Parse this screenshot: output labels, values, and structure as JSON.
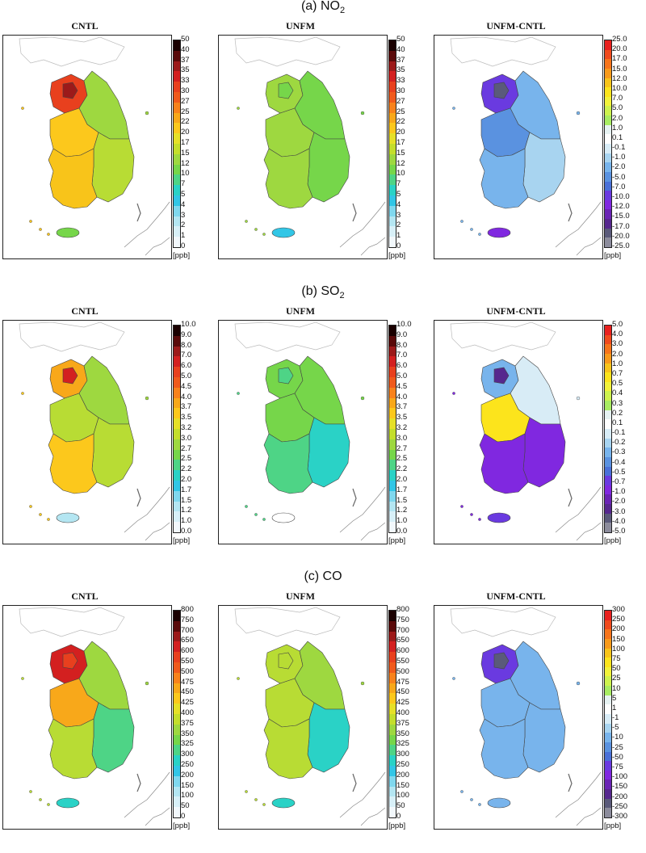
{
  "sections": [
    {
      "title_main": "(a) NO",
      "title_sub": "2",
      "scale": "a",
      "panels": [
        "CNTL",
        "UNFM",
        "UNFM-CNTL"
      ]
    },
    {
      "title_main": "(b) SO",
      "title_sub": "2",
      "scale": "b",
      "panels": [
        "CNTL",
        "UNFM",
        "UNFM-CNTL"
      ]
    },
    {
      "title_main": "(c) CO",
      "title_sub": "",
      "scale": "c",
      "panels": [
        "CNTL",
        "UNFM",
        "UNFM-CNTL"
      ]
    }
  ],
  "unit_label": "[ppb]",
  "scales": {
    "a_abs": [
      "50",
      "40",
      "37",
      "35",
      "33",
      "30",
      "27",
      "25",
      "22",
      "20",
      "17",
      "15",
      "12",
      "10",
      "7",
      "5",
      "4",
      "3",
      "2",
      "1",
      "0"
    ],
    "a_diff": [
      "25.0",
      "20.0",
      "17.0",
      "15.0",
      "12.0",
      "10.0",
      "7.0",
      "5.0",
      "2.0",
      "1.0",
      "0.1",
      "-0.1",
      "-1.0",
      "-2.0",
      "-5.0",
      "-7.0",
      "-10.0",
      "-12.0",
      "-15.0",
      "-17.0",
      "-20.0",
      "-25.0"
    ],
    "b_abs": [
      "10.0",
      "9.0",
      "8.0",
      "7.0",
      "6.0",
      "5.0",
      "4.5",
      "4.0",
      "3.7",
      "3.5",
      "3.2",
      "3.0",
      "2.7",
      "2.5",
      "2.2",
      "2.0",
      "1.7",
      "1.5",
      "1.2",
      "1.0",
      "0.0"
    ],
    "b_diff": [
      "5.0",
      "4.0",
      "3.0",
      "2.0",
      "1.0",
      "0.7",
      "0.5",
      "0.4",
      "0.3",
      "0.2",
      "0.1",
      "-0.1",
      "-0.2",
      "-0.3",
      "-0.4",
      "-0.5",
      "-0.7",
      "-1.0",
      "-2.0",
      "-3.0",
      "-4.0",
      "-5.0"
    ],
    "c_abs": [
      "800",
      "750",
      "700",
      "650",
      "600",
      "550",
      "500",
      "475",
      "450",
      "425",
      "400",
      "375",
      "350",
      "325",
      "300",
      "250",
      "200",
      "150",
      "100",
      "50",
      "0"
    ],
    "c_diff": [
      "300",
      "250",
      "200",
      "150",
      "100",
      "75",
      "50",
      "25",
      "10",
      "5",
      "1",
      "-1",
      "-5",
      "-10",
      "-25",
      "-50",
      "-75",
      "-100",
      "-150",
      "-200",
      "-250",
      "-300"
    ]
  },
  "colors": {
    "abs": [
      "#1a0000",
      "#5a0a0a",
      "#9c1a1a",
      "#d32020",
      "#e8401e",
      "#f05a1c",
      "#f8821c",
      "#f8a81a",
      "#fcc81c",
      "#e6e028",
      "#c4de2c",
      "#9ed840",
      "#76d64a",
      "#4ed486",
      "#2ad2c6",
      "#32c6e6",
      "#80d8ee",
      "#b4e6f2",
      "#d8f0f8",
      "#f2f8fc"
    ],
    "diff": [
      "#e8201e",
      "#f04a1c",
      "#f6741a",
      "#f89a1a",
      "#f8c41a",
      "#fce41c",
      "#f2f23a",
      "#cef24e",
      "#a8ec62",
      "#e6f2f2",
      "#ffffff",
      "#d8ecf6",
      "#a8d4f0",
      "#78b4ec",
      "#5a92e0",
      "#4a70d8",
      "#6a3ae0",
      "#8028e0",
      "#6a24b4",
      "#56288e",
      "#5a5a7a",
      "#8c8c9c"
    ]
  },
  "map_fills": {
    "a": {
      "CNTL": {
        "north": "#9ed840",
        "capital": "#e8401e",
        "center": "#fcc81c",
        "southwest": "#f8c41a",
        "southeast": "#b8dc34",
        "jeju": "#76d64a",
        "hotspot": "#9c1a1a"
      },
      "UNFM": {
        "north": "#76d64a",
        "capital": "#9ed840",
        "center": "#9ed840",
        "southwest": "#9ed840",
        "southeast": "#76d64a",
        "jeju": "#32c6e6",
        "hotspot": "#76d64a"
      },
      "UNFM-CNTL": {
        "north": "#78b4ec",
        "capital": "#6a3ae0",
        "center": "#5a92e0",
        "southwest": "#78b4ec",
        "southeast": "#a8d4f0",
        "jeju": "#8028e0",
        "hotspot": "#5a5a7a"
      }
    },
    "b": {
      "CNTL": {
        "north": "#9ed840",
        "capital": "#f8a81a",
        "center": "#b8dc34",
        "southwest": "#fcc81c",
        "southeast": "#b8dc34",
        "jeju": "#b4e6f2",
        "hotspot": "#d32020"
      },
      "UNFM": {
        "north": "#76d64a",
        "capital": "#76d64a",
        "center": "#76d64a",
        "southwest": "#4ed486",
        "southeast": "#2ad2c6",
        "jeju": "#ffffff",
        "hotspot": "#4ed486"
      },
      "UNFM-CNTL": {
        "north": "#d8ecf6",
        "capital": "#78b4ec",
        "center": "#fce41c",
        "southwest": "#8028e0",
        "southeast": "#8028e0",
        "jeju": "#6a3ae0",
        "hotspot": "#56288e"
      }
    },
    "c": {
      "CNTL": {
        "north": "#9ed840",
        "capital": "#d32020",
        "center": "#f8a81a",
        "southwest": "#b8dc34",
        "southeast": "#4ed486",
        "jeju": "#2ad2c6",
        "hotspot": "#e8401e"
      },
      "UNFM": {
        "north": "#9ed840",
        "capital": "#b8dc34",
        "center": "#b8dc34",
        "southwest": "#b8dc34",
        "southeast": "#2ad2c6",
        "jeju": "#2ad2c6",
        "hotspot": "#b8dc34"
      },
      "UNFM-CNTL": {
        "north": "#78b4ec",
        "capital": "#6a3ae0",
        "center": "#78b4ec",
        "southwest": "#78b4ec",
        "southeast": "#78b4ec",
        "jeju": "#78b4ec",
        "hotspot": "#5a5a7a"
      }
    }
  }
}
